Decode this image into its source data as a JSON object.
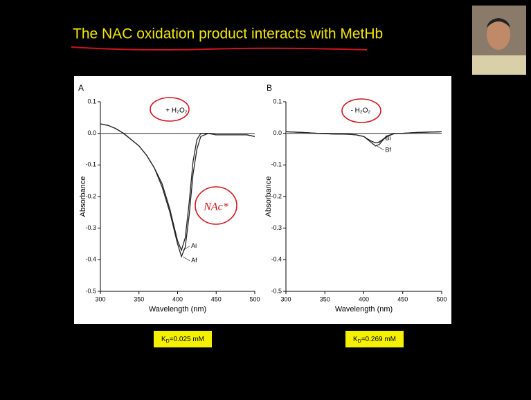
{
  "slide": {
    "title": "The NAC oxidation product interacts with MetHb",
    "kd_labels": [
      {
        "symbol": "K",
        "subscript": "D",
        "text": "=0.025 mM"
      },
      {
        "symbol": "K",
        "subscript": "D",
        "text": "=0.269 mM"
      }
    ]
  },
  "chart_data": [
    {
      "type": "line",
      "panel_label": "A",
      "xlabel": "Wavelength (nm)",
      "ylabel": "Absorbance",
      "annotations": [
        "+ H₂O₂",
        "NAc*"
      ],
      "xlim": [
        300,
        500
      ],
      "xticks": [
        300,
        350,
        400,
        450,
        500
      ],
      "ylim": [
        -0.5,
        0.1
      ],
      "yticks": [
        0.1,
        {
          "value": 0,
          "label": "0.0"
        },
        -0.1,
        -0.2,
        -0.3,
        -0.4,
        -0.5
      ],
      "x": [
        300,
        310,
        320,
        330,
        340,
        350,
        360,
        370,
        380,
        390,
        395,
        400,
        405,
        410,
        415,
        420,
        425,
        430,
        440,
        450,
        460,
        470,
        480,
        490,
        500
      ],
      "series": [
        {
          "color": "#666666",
          "values": [
            0,
            0,
            0,
            0,
            0,
            0,
            0,
            0,
            0,
            0,
            0,
            0,
            0,
            0,
            0,
            0,
            0,
            0,
            0,
            0,
            0,
            0,
            0,
            0,
            0
          ]
        },
        {
          "name": "Ai",
          "color": "#222222",
          "values": [
            0.03,
            0.025,
            0.015,
            0.0,
            -0.02,
            -0.04,
            -0.07,
            -0.11,
            -0.16,
            -0.24,
            -0.29,
            -0.34,
            -0.37,
            -0.33,
            -0.22,
            -0.09,
            -0.02,
            0.0,
            0.0,
            -0.005,
            -0.005,
            -0.005,
            -0.005,
            -0.005,
            -0.01
          ]
        },
        {
          "name": "Af",
          "color": "#222222",
          "values": [
            0.03,
            0.025,
            0.015,
            0.0,
            -0.02,
            -0.04,
            -0.07,
            -0.11,
            -0.17,
            -0.25,
            -0.3,
            -0.35,
            -0.39,
            -0.36,
            -0.26,
            -0.13,
            -0.05,
            -0.01,
            0.0,
            -0.005,
            -0.005,
            -0.005,
            -0.005,
            -0.005,
            -0.01
          ]
        }
      ]
    },
    {
      "type": "line",
      "panel_label": "B",
      "xlabel": "Wavelength (nm)",
      "ylabel": "Absorbance",
      "annotations": [
        "- H₂O₂"
      ],
      "xlim": [
        300,
        500
      ],
      "xticks": [
        300,
        350,
        400,
        450,
        500
      ],
      "ylim": [
        -0.5,
        0.1
      ],
      "yticks": [
        0.1,
        {
          "value": 0,
          "label": "0.0"
        },
        -0.1,
        -0.2,
        -0.3,
        -0.4,
        -0.5
      ],
      "x": [
        300,
        320,
        340,
        360,
        380,
        390,
        400,
        405,
        410,
        415,
        420,
        425,
        430,
        440,
        450,
        470,
        500
      ],
      "series": [
        {
          "color": "#666666",
          "values": [
            0,
            0,
            0,
            0,
            0,
            0,
            0,
            0,
            0,
            0,
            0,
            0,
            0,
            0,
            0,
            0,
            0
          ]
        },
        {
          "name": "Bi",
          "color": "#222222",
          "values": [
            0.005,
            0.003,
            0.0,
            -0.002,
            -0.003,
            -0.005,
            -0.01,
            -0.018,
            -0.025,
            -0.03,
            -0.028,
            -0.018,
            -0.008,
            0.0,
            0.0,
            0.003,
            0.005
          ]
        },
        {
          "name": "Bf",
          "color": "#222222",
          "values": [
            0.005,
            0.003,
            0.0,
            -0.002,
            -0.003,
            -0.005,
            -0.01,
            -0.02,
            -0.03,
            -0.04,
            -0.035,
            -0.02,
            -0.01,
            0.0,
            0.0,
            0.003,
            0.005
          ]
        }
      ]
    }
  ]
}
